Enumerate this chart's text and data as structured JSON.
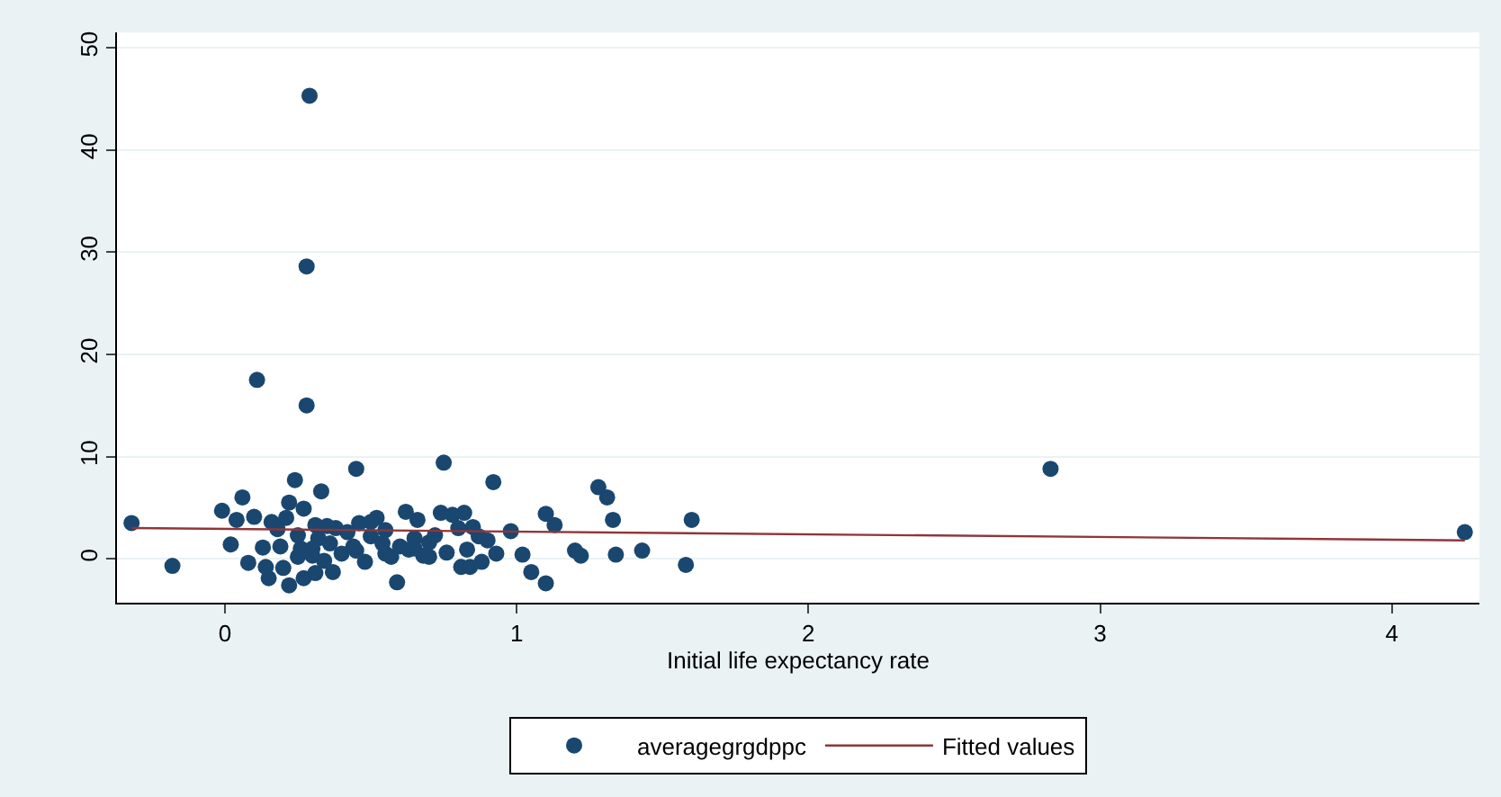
{
  "chart_data": {
    "type": "scatter",
    "xlabel": "Initial life expectancy rate",
    "xlim": [
      -0.37,
      4.3
    ],
    "xticks": [
      0,
      1,
      2,
      3,
      4
    ],
    "ylim": [
      -4.3,
      51.5
    ],
    "yticks": [
      0,
      10,
      20,
      30,
      40,
      50
    ],
    "grid": "y",
    "legend": "bottom",
    "marker": "circle",
    "series": [
      {
        "name": "averagegrgdppc",
        "color": "#1a476f",
        "x": [
          -0.32,
          -0.18,
          -0.01,
          0.02,
          0.04,
          0.06,
          0.08,
          0.1,
          0.11,
          0.13,
          0.14,
          0.15,
          0.16,
          0.18,
          0.19,
          0.2,
          0.21,
          0.22,
          0.22,
          0.24,
          0.25,
          0.26,
          0.27,
          0.28,
          0.28,
          0.29,
          0.27,
          0.3,
          0.31,
          0.31,
          0.32,
          0.33,
          0.34,
          0.36,
          0.37,
          0.38,
          0.4,
          0.42,
          0.44,
          0.45,
          0.46,
          0.48,
          0.5,
          0.52,
          0.54,
          0.55,
          0.57,
          0.59,
          0.6,
          0.62,
          0.63,
          0.65,
          0.66,
          0.68,
          0.7,
          0.72,
          0.74,
          0.75,
          0.76,
          0.78,
          0.8,
          0.81,
          0.82,
          0.83,
          0.84,
          0.85,
          0.87,
          0.88,
          0.9,
          0.92,
          0.93,
          0.98,
          1.02,
          1.05,
          1.1,
          1.1,
          1.13,
          1.2,
          1.22,
          1.28,
          1.31,
          1.33,
          1.34,
          1.43,
          1.58,
          1.6,
          2.83,
          4.25,
          0.35,
          0.5,
          0.55,
          0.25,
          0.3,
          0.7,
          0.65,
          0.45
        ],
        "values": [
          3.5,
          -0.7,
          4.7,
          1.4,
          3.8,
          6.0,
          -0.4,
          4.1,
          17.5,
          1.1,
          -0.8,
          -1.9,
          3.6,
          2.9,
          1.2,
          -0.9,
          4.0,
          5.5,
          -2.6,
          7.7,
          2.3,
          1.0,
          4.9,
          15.0,
          28.6,
          45.3,
          -1.9,
          0.3,
          -1.4,
          3.3,
          2.0,
          6.6,
          -0.2,
          1.5,
          -1.3,
          3.0,
          0.5,
          2.6,
          1.2,
          8.8,
          3.5,
          -0.3,
          2.2,
          4.0,
          1.5,
          0.5,
          0.2,
          -2.3,
          1.2,
          4.6,
          0.9,
          2.0,
          3.8,
          0.3,
          1.6,
          2.3,
          4.5,
          9.4,
          0.6,
          4.3,
          3.0,
          -0.8,
          4.5,
          0.9,
          -0.8,
          3.1,
          2.2,
          -0.3,
          1.8,
          7.5,
          0.5,
          2.7,
          0.4,
          -1.3,
          4.4,
          -2.4,
          3.3,
          0.8,
          0.3,
          7.0,
          6.0,
          3.8,
          0.4,
          0.8,
          -0.6,
          3.8,
          8.8,
          2.6,
          3.2,
          3.6,
          2.8,
          0.2,
          1.0,
          0.2,
          1.0,
          0.8
        ]
      },
      {
        "name": "Fitted values",
        "type": "line",
        "color": "#90353b",
        "marker": "none",
        "x": [
          -0.32,
          4.25
        ],
        "values": [
          3.0,
          1.8
        ]
      }
    ]
  }
}
